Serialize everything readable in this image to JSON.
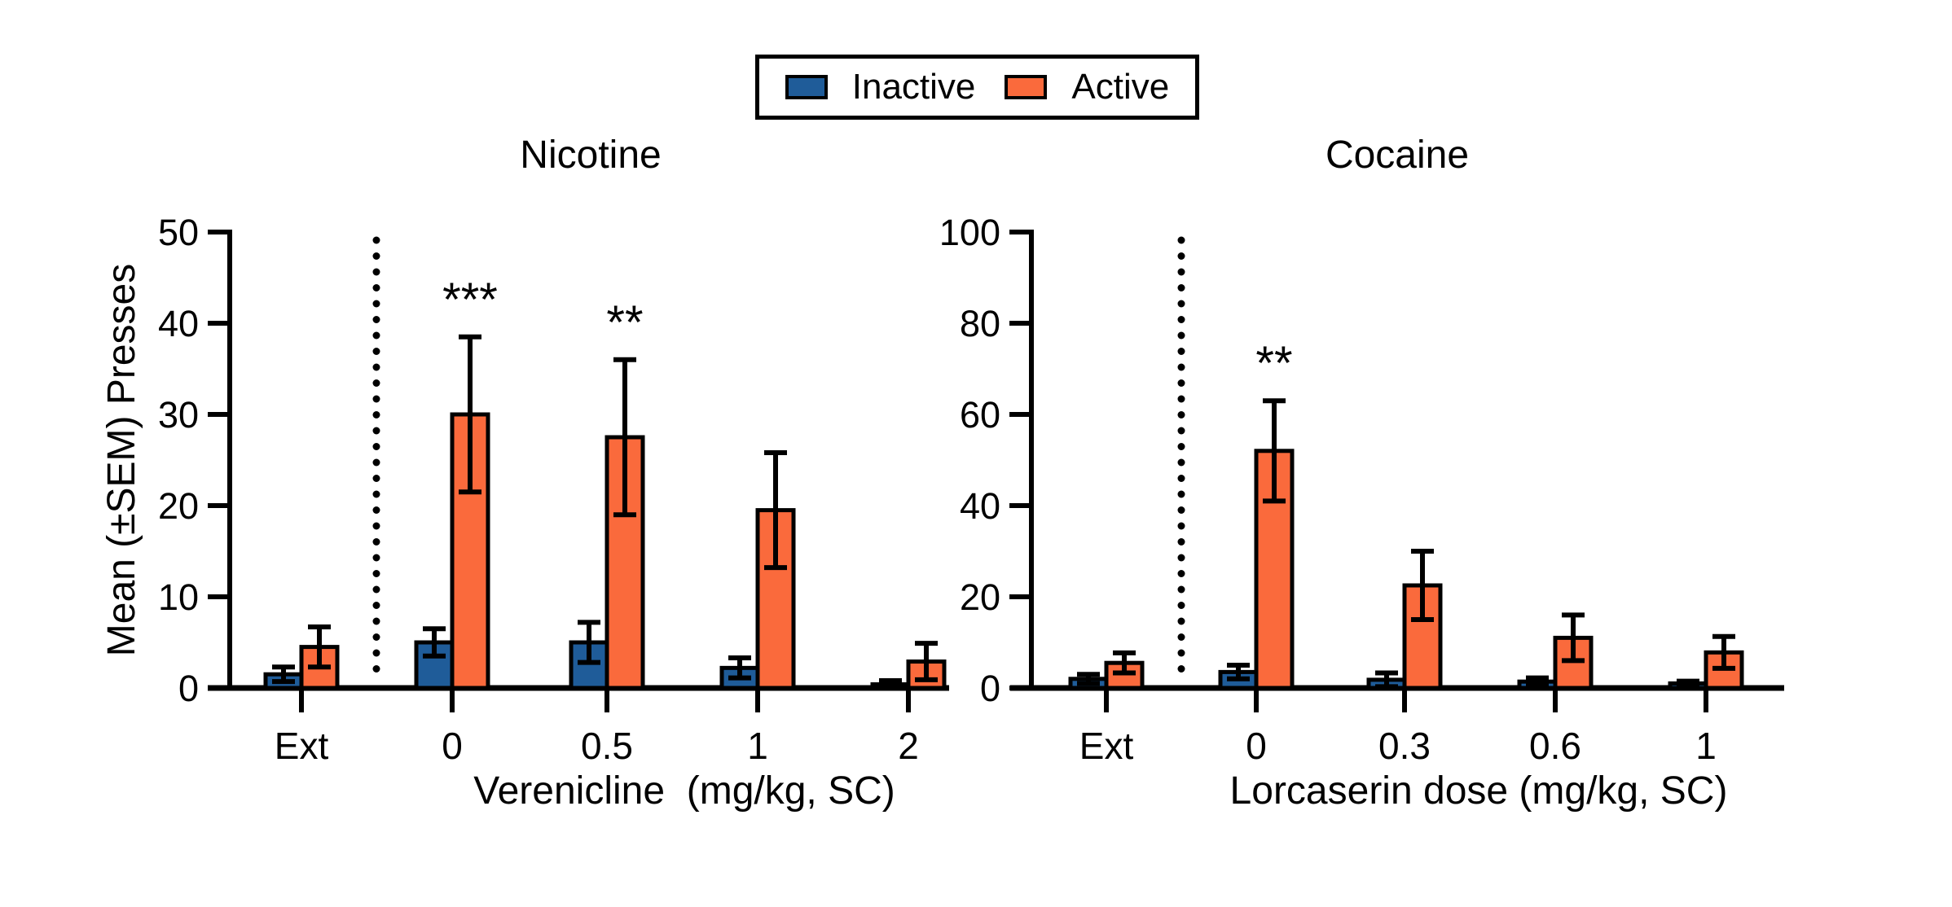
{
  "figure": {
    "ylabel": "Mean (±SEM) Presses",
    "legend": {
      "items": [
        {
          "label": "Inactive",
          "color": "#1F5C99"
        },
        {
          "label": "Active",
          "color": "#FA6A3C"
        }
      ]
    },
    "colors": {
      "inactive": "#1F5C99",
      "active": "#FA6A3C",
      "axis": "#000000",
      "background": "#FFFFFF"
    }
  },
  "chart_data": [
    {
      "type": "bar",
      "title": "Nicotine",
      "xlabel": "Verenicline  (mg/kg, SC)",
      "ylabel": "Mean (±SEM) Presses",
      "categories": [
        "Ext",
        "0",
        "0.5",
        "1",
        "2"
      ],
      "ylim": [
        0,
        50
      ],
      "yticks": [
        0,
        10,
        20,
        30,
        40,
        50
      ],
      "grid": false,
      "legend_position": "top",
      "separator_after_category": "Ext",
      "series": [
        {
          "name": "Inactive",
          "color": "#1F5C99",
          "values": [
            1.5,
            5.0,
            5.0,
            2.2,
            0.4
          ],
          "sem": [
            0.8,
            1.5,
            2.2,
            1.1,
            0.4
          ]
        },
        {
          "name": "Active",
          "color": "#FA6A3C",
          "values": [
            4.5,
            30.0,
            27.5,
            19.5,
            2.9
          ],
          "sem": [
            2.2,
            8.5,
            8.5,
            6.3,
            2.0
          ]
        }
      ],
      "annotations": [
        {
          "category": "0",
          "series": "Active",
          "text": "***"
        },
        {
          "category": "0.5",
          "series": "Active",
          "text": "**"
        }
      ]
    },
    {
      "type": "bar",
      "title": "Cocaine",
      "xlabel": "Lorcaserin dose (mg/kg, SC)",
      "ylabel": "Mean (±SEM) Presses",
      "categories": [
        "Ext",
        "0",
        "0.3",
        "0.6",
        "1"
      ],
      "ylim": [
        0,
        100
      ],
      "yticks": [
        0,
        20,
        40,
        60,
        80,
        100
      ],
      "grid": false,
      "legend_position": "top",
      "separator_after_category": "Ext",
      "series": [
        {
          "name": "Inactive",
          "color": "#1F5C99",
          "values": [
            2.0,
            3.5,
            1.8,
            1.4,
            1.0
          ],
          "sem": [
            1.0,
            1.5,
            1.5,
            0.8,
            0.5
          ]
        },
        {
          "name": "Active",
          "color": "#FA6A3C",
          "values": [
            5.5,
            52.0,
            22.5,
            11.0,
            7.8
          ],
          "sem": [
            2.2,
            11.0,
            7.5,
            5.0,
            3.5
          ]
        }
      ],
      "annotations": [
        {
          "category": "0",
          "series": "Active",
          "text": "**"
        }
      ]
    }
  ]
}
